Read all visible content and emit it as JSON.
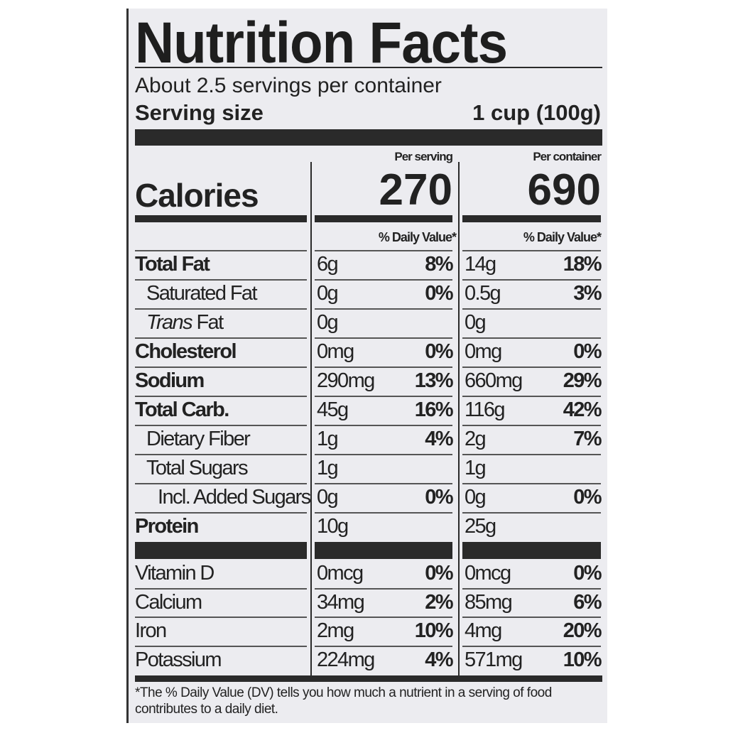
{
  "title": "Nutrition Facts",
  "servings_per_container": "About 2.5 servings per container",
  "serving_size": {
    "label": "Serving size",
    "value": "1 cup (100g)"
  },
  "calories": {
    "label": "Calories",
    "per_serving_header": "Per serving",
    "per_container_header": "Per container",
    "per_serving": "270",
    "per_container": "690"
  },
  "daily_value_header": "% Daily Value*",
  "nutrients": [
    {
      "name": "Total Fat",
      "bold": true,
      "indent": 0,
      "serving_amt": "6g",
      "serving_dv": "8%",
      "container_amt": "14g",
      "container_dv": "18%"
    },
    {
      "name": "Saturated Fat",
      "bold": false,
      "indent": 1,
      "serving_amt": "0g",
      "serving_dv": "0%",
      "container_amt": "0.5g",
      "container_dv": "3%"
    },
    {
      "name": "Trans Fat",
      "bold": false,
      "indent": 1,
      "italic_prefix": "Trans",
      "serving_amt": "0g",
      "serving_dv": "",
      "container_amt": "0g",
      "container_dv": ""
    },
    {
      "name": "Cholesterol",
      "bold": true,
      "indent": 0,
      "serving_amt": "0mg",
      "serving_dv": "0%",
      "container_amt": "0mg",
      "container_dv": "0%"
    },
    {
      "name": "Sodium",
      "bold": true,
      "indent": 0,
      "serving_amt": "290mg",
      "serving_dv": "13%",
      "container_amt": "660mg",
      "container_dv": "29%"
    },
    {
      "name": "Total Carb.",
      "bold": true,
      "indent": 0,
      "serving_amt": "45g",
      "serving_dv": "16%",
      "container_amt": "116g",
      "container_dv": "42%"
    },
    {
      "name": "Dietary Fiber",
      "bold": false,
      "indent": 1,
      "serving_amt": "1g",
      "serving_dv": "4%",
      "container_amt": "2g",
      "container_dv": "7%"
    },
    {
      "name": "Total Sugars",
      "bold": false,
      "indent": 1,
      "serving_amt": "1g",
      "serving_dv": "",
      "container_amt": "1g",
      "container_dv": ""
    },
    {
      "name": "Incl. Added Sugars",
      "bold": false,
      "indent": 2,
      "serving_amt": "0g",
      "serving_dv": "0%",
      "container_amt": "0g",
      "container_dv": "0%"
    },
    {
      "name": "Protein",
      "bold": true,
      "indent": 0,
      "serving_amt": "10g",
      "serving_dv": "",
      "container_amt": "25g",
      "container_dv": ""
    }
  ],
  "vitamins": [
    {
      "name": "Vitamin D",
      "serving_amt": "0mcg",
      "serving_dv": "0%",
      "container_amt": "0mcg",
      "container_dv": "0%"
    },
    {
      "name": "Calcium",
      "serving_amt": "34mg",
      "serving_dv": "2%",
      "container_amt": "85mg",
      "container_dv": "6%"
    },
    {
      "name": "Iron",
      "serving_amt": "2mg",
      "serving_dv": "10%",
      "container_amt": "4mg",
      "container_dv": "20%"
    },
    {
      "name": "Potassium",
      "serving_amt": "224mg",
      "serving_dv": "4%",
      "container_amt": "571mg",
      "container_dv": "10%"
    }
  ],
  "footnote": "*The % Daily Value (DV) tells you how much a nutrient in a serving of food contributes to a daily diet."
}
